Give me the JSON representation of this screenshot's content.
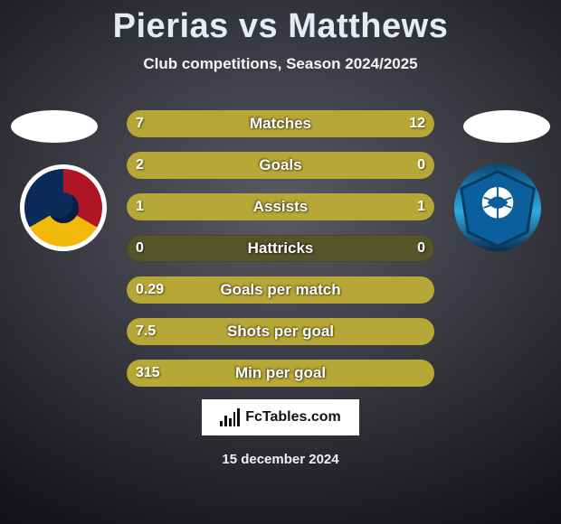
{
  "title": "Pierias vs Matthews",
  "subtitle": "Club competitions, Season 2024/2025",
  "footer_date": "15 december 2024",
  "branding_text": "FcTables.com",
  "colors": {
    "bar_track": "#55552a",
    "bar_fill": "#b7a736",
    "text": "#ffffff"
  },
  "bars": [
    {
      "label": "Matches",
      "left": "7",
      "right": "12",
      "left_pct": 37,
      "right_pct": 63
    },
    {
      "label": "Goals",
      "left": "2",
      "right": "0",
      "left_pct": 100,
      "right_pct": 0
    },
    {
      "label": "Assists",
      "left": "1",
      "right": "1",
      "left_pct": 50,
      "right_pct": 50
    },
    {
      "label": "Hattricks",
      "left": "0",
      "right": "0",
      "left_pct": 0,
      "right_pct": 0
    },
    {
      "label": "Goals per match",
      "left": "0.29",
      "right": "",
      "left_pct": 100,
      "right_pct": 0
    },
    {
      "label": "Shots per goal",
      "left": "7.5",
      "right": "",
      "left_pct": 100,
      "right_pct": 0
    },
    {
      "label": "Min per goal",
      "left": "315",
      "right": "",
      "left_pct": 100,
      "right_pct": 0
    }
  ]
}
